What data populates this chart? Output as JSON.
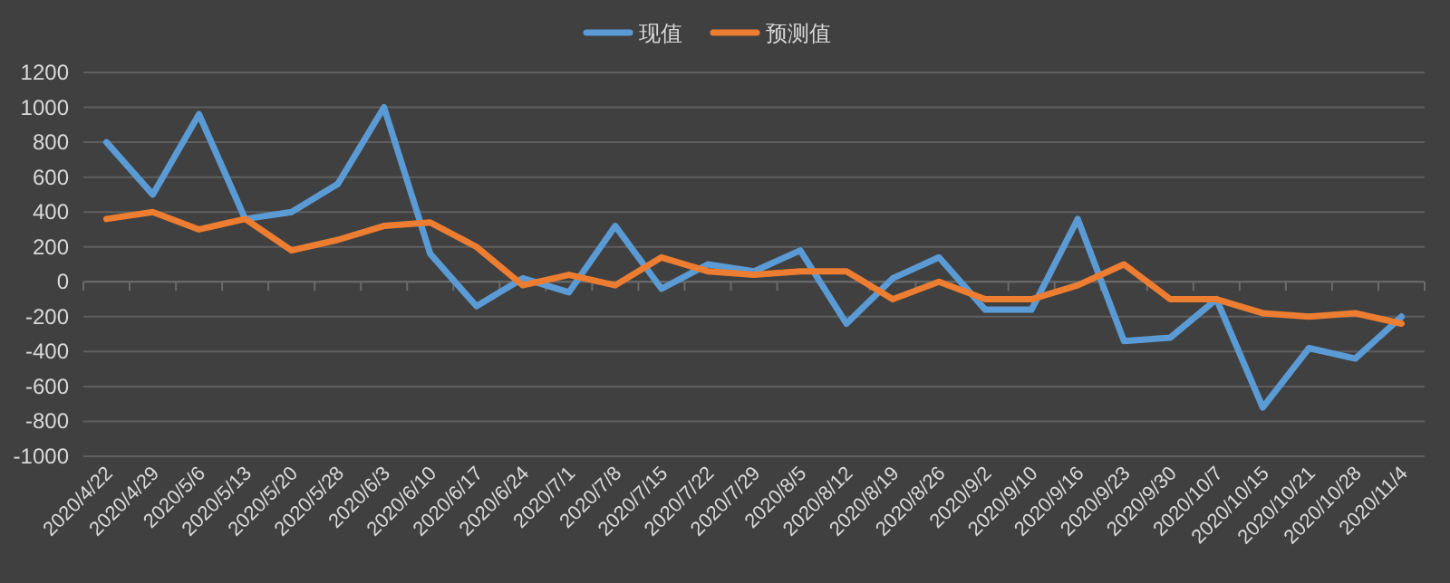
{
  "chart_data": {
    "type": "line",
    "categories": [
      "2020/4/22",
      "2020/4/29",
      "2020/5/6",
      "2020/5/13",
      "2020/5/20",
      "2020/5/28",
      "2020/6/3",
      "2020/6/10",
      "2020/6/17",
      "2020/6/24",
      "2020/7/1",
      "2020/7/8",
      "2020/7/15",
      "2020/7/22",
      "2020/7/29",
      "2020/8/5",
      "2020/8/12",
      "2020/8/19",
      "2020/8/26",
      "2020/9/2",
      "2020/9/10",
      "2020/9/16",
      "2020/9/23",
      "2020/9/30",
      "2020/10/7",
      "2020/10/15",
      "2020/10/21",
      "2020/10/28",
      "2020/11/4"
    ],
    "series": [
      {
        "name": "现值",
        "color": "#5b9bd5",
        "values": [
          800,
          500,
          960,
          360,
          400,
          560,
          1000,
          160,
          -140,
          20,
          -60,
          320,
          -40,
          100,
          60,
          180,
          -240,
          20,
          140,
          -160,
          -160,
          360,
          -340,
          -320,
          -100,
          -720,
          -380,
          -440,
          -200
        ]
      },
      {
        "name": "预测值",
        "color": "#ed7d31",
        "values": [
          360,
          400,
          300,
          360,
          180,
          240,
          320,
          340,
          200,
          -20,
          40,
          -20,
          140,
          60,
          40,
          60,
          60,
          -100,
          0,
          -100,
          -100,
          -20,
          100,
          -100,
          -100,
          -180,
          -200,
          -180,
          -240
        ]
      }
    ],
    "ylim": [
      -1000,
      1200
    ],
    "yticks": [
      -1000,
      -800,
      -600,
      -400,
      -200,
      0,
      200,
      400,
      600,
      800,
      1000,
      1200
    ],
    "grid": "y",
    "legend": "top",
    "marker": "none",
    "line_style": "solid"
  }
}
